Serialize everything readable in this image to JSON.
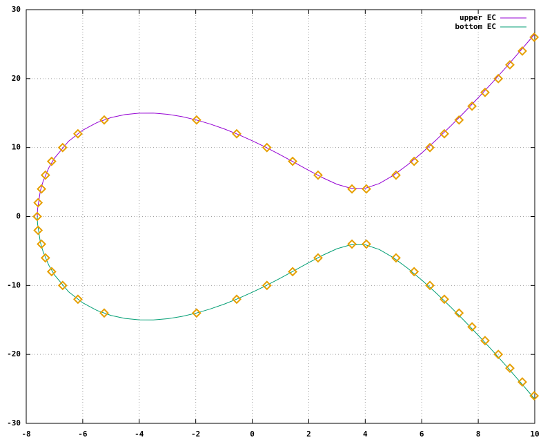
{
  "chart_data": {
    "type": "line",
    "x": [
      -7.608,
      -7.6,
      -7.5,
      -7.4,
      -7.2,
      -7,
      -6.5,
      -6,
      -5.5,
      -5,
      -4.5,
      -4,
      -3.5,
      -3,
      -2.5,
      -2,
      -1.5,
      -1,
      -0.5,
      0,
      0.5,
      1,
      1.5,
      2,
      2.5,
      3,
      3.5,
      4,
      4.5,
      5,
      5.5,
      6,
      6.5,
      7,
      7.5,
      8,
      8.5,
      9,
      9.5,
      10
    ],
    "series": [
      {
        "name": "upper EC",
        "color": "#9400d3",
        "values": [
          0,
          1.01,
          3.73,
          5.14,
          7.07,
          8.47,
          10.92,
          12.52,
          13.62,
          14.35,
          14.79,
          14.99,
          15.0,
          14.83,
          14.5,
          14.03,
          13.43,
          12.72,
          11.9,
          10.99,
          10.0,
          8.93,
          7.82,
          6.69,
          5.61,
          4.67,
          4.08,
          4.1,
          4.79,
          5.98,
          7.5,
          9.21,
          11.06,
          13.03,
          15.09,
          17.23,
          19.44,
          21.72,
          24.07,
          26.47
        ]
      },
      {
        "name": "bottom EC",
        "color": "#009e73",
        "values": [
          0,
          -1.01,
          -3.73,
          -5.14,
          -7.07,
          -8.47,
          -10.92,
          -12.52,
          -13.62,
          -14.35,
          -14.79,
          -14.99,
          -15.0,
          -14.83,
          -14.5,
          -14.03,
          -13.43,
          -12.72,
          -11.9,
          -10.99,
          -10.0,
          -8.93,
          -7.82,
          -6.69,
          -5.61,
          -4.67,
          -4.08,
          -4.1,
          -4.79,
          -5.98,
          -7.5,
          -9.21,
          -11.06,
          -13.03,
          -15.09,
          -17.23,
          -19.44,
          -21.72,
          -24.07,
          -26.47
        ]
      },
      {
        "type": "scatter",
        "marker": "diamond",
        "color": "#e69f00",
        "x": [
          -7.61,
          -7.58,
          -7.46,
          -7.32,
          -7.1,
          -6.71,
          -6.17,
          -5.24,
          -1.97,
          -0.55,
          0.52,
          1.43,
          2.33,
          3.53,
          4.04,
          5.09,
          5.73,
          6.29,
          6.8,
          7.32,
          7.78,
          8.24,
          8.71,
          9.12,
          9.56,
          9.98,
          -7.58,
          -7.46,
          -7.32,
          -7.1,
          -6.71,
          -6.17,
          -5.24,
          -1.97,
          -0.55,
          0.52,
          1.43,
          2.33,
          3.53,
          4.04,
          5.09,
          5.73,
          6.29,
          6.8,
          7.32,
          7.78,
          8.24,
          8.71,
          9.12,
          9.56,
          9.98
        ],
        "values": [
          0,
          2,
          4,
          6,
          8,
          10,
          12,
          14,
          14,
          12,
          10,
          8,
          6,
          4,
          4,
          6,
          8,
          10,
          12,
          14,
          16,
          18,
          20,
          22,
          24,
          26,
          -2,
          -4,
          -6,
          -8,
          -10,
          -12,
          -14,
          -14,
          -12,
          -10,
          -8,
          -6,
          -4,
          -4,
          -6,
          -8,
          -10,
          -12,
          -14,
          -16,
          -18,
          -20,
          -22,
          -24,
          -26
        ]
      }
    ],
    "xlim": [
      -8,
      10
    ],
    "xticks": [
      -8,
      -6,
      -4,
      -2,
      0,
      2,
      4,
      6,
      8,
      10
    ],
    "ylim": [
      -30,
      30
    ],
    "yticks": [
      -30,
      -20,
      -10,
      0,
      10,
      20,
      30
    ],
    "grid": true,
    "legend": "top-right"
  }
}
